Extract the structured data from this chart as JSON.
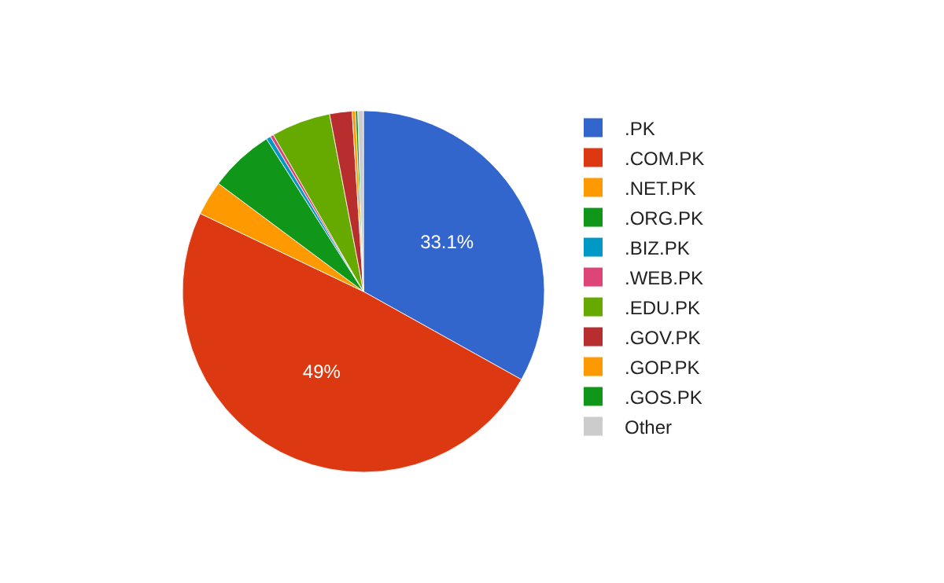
{
  "chart_data": {
    "type": "pie",
    "categories": [
      ".PK",
      ".COM.PK",
      ".NET.PK",
      ".ORG.PK",
      ".BIZ.PK",
      ".WEB.PK",
      ".EDU.PK",
      ".GOV.PK",
      ".GOP.PK",
      ".GOS.PK",
      "Other"
    ],
    "values": [
      33.1,
      49,
      3.1,
      5.8,
      0.4,
      0.3,
      5.3,
      2.0,
      0.3,
      0.2,
      0.5
    ],
    "colors": [
      "#3366cc",
      "#dc3912",
      "#ff9900",
      "#109618",
      "#0099c6",
      "#dd4477",
      "#66aa00",
      "#b82e2e",
      "#ff9900",
      "#109618",
      "#cccccc"
    ],
    "value_labels": [
      "33.1%",
      "49%",
      null,
      null,
      null,
      null,
      null,
      null,
      null,
      null,
      null
    ],
    "legend": "right"
  }
}
